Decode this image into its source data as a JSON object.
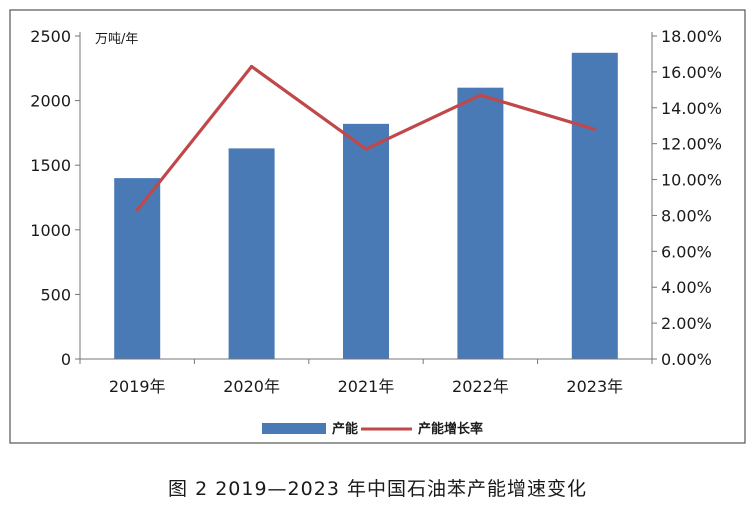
{
  "chart_data": {
    "type": "bar",
    "categories": [
      "2019年",
      "2020年",
      "2021年",
      "2022年",
      "2023年"
    ],
    "series": [
      {
        "name": "产能",
        "type": "bar",
        "axis": "left",
        "color": "#4a7ab5",
        "values": [
          1400,
          1630,
          1820,
          2100,
          2370
        ]
      },
      {
        "name": "产能增长率",
        "type": "line",
        "axis": "right",
        "color": "#c0474a",
        "values": [
          8.3,
          16.3,
          11.7,
          14.7,
          12.8
        ]
      }
    ],
    "y_left": {
      "unit": "万吨/年",
      "ylim": [
        0,
        2500
      ],
      "ticks": [
        "0",
        "500",
        "1000",
        "1500",
        "2000",
        "2500"
      ]
    },
    "y_right": {
      "ylim": [
        0,
        18
      ],
      "ticks": [
        "0.00%",
        "2.00%",
        "4.00%",
        "6.00%",
        "8.00%",
        "10.00%",
        "12.00%",
        "14.00%",
        "16.00%",
        "18.00%"
      ]
    },
    "grid": false,
    "legend_position": "bottom"
  },
  "caption": "图 2  2019—2023 年中国石油苯产能增速变化"
}
